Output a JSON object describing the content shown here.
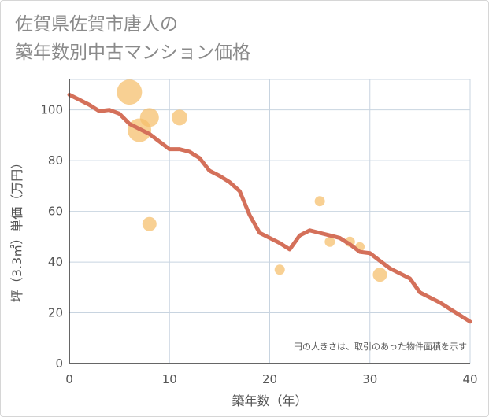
{
  "title_line1": "佐賀県佐賀市唐人の",
  "title_line2": "築年数別中古マンション価格",
  "chart_data": {
    "type": "scatter",
    "xlabel": "築年数（年）",
    "ylabel": "坪（3.3㎡）単価（万円）",
    "note": "円の大きさは、取引のあった物件面積を示す",
    "xlim": [
      0,
      40
    ],
    "ylim": [
      0,
      112
    ],
    "x_ticks": [
      0,
      10,
      20,
      30,
      40
    ],
    "y_ticks": [
      0,
      20,
      40,
      60,
      80,
      100
    ],
    "x_tick_labels": [
      "0",
      "10",
      "20",
      "30",
      "40"
    ],
    "y_tick_labels": [
      "0",
      "20",
      "40",
      "60",
      "80",
      "100"
    ],
    "grid": true,
    "colors": {
      "bubble": "#f5be69",
      "line": "#d4705a",
      "grid": "#c8d4e0",
      "axis": "#333333"
    },
    "scatter_points": [
      {
        "x": 6,
        "y": 107,
        "size": 3.2
      },
      {
        "x": 7,
        "y": 92,
        "size": 3.0
      },
      {
        "x": 8,
        "y": 97,
        "size": 2.4
      },
      {
        "x": 11,
        "y": 97,
        "size": 2.0
      },
      {
        "x": 8,
        "y": 55,
        "size": 1.8
      },
      {
        "x": 21,
        "y": 37,
        "size": 1.3
      },
      {
        "x": 25,
        "y": 64,
        "size": 1.3
      },
      {
        "x": 26,
        "y": 48,
        "size": 1.3
      },
      {
        "x": 28,
        "y": 48,
        "size": 1.3
      },
      {
        "x": 29,
        "y": 46,
        "size": 1.2
      },
      {
        "x": 31,
        "y": 35,
        "size": 1.8
      }
    ],
    "trend_line": {
      "x": [
        0,
        1,
        2,
        3,
        4,
        5,
        6,
        7,
        8,
        9,
        10,
        11,
        12,
        13,
        14,
        15,
        16,
        17,
        18,
        19,
        20,
        21,
        22,
        23,
        24,
        25,
        26,
        27,
        28,
        29,
        30,
        31,
        32,
        33,
        34,
        35,
        36,
        37,
        38,
        39,
        40
      ],
      "y": [
        106,
        104,
        102,
        99.5,
        100,
        98.5,
        94.5,
        92.5,
        90.5,
        87.5,
        84.5,
        84.5,
        83.5,
        81,
        76,
        74,
        71.5,
        68,
        58.5,
        51.5,
        49.5,
        47.5,
        45,
        50.5,
        52.5,
        51.5,
        50.5,
        49.5,
        47,
        44,
        43.5,
        40.5,
        37.5,
        35.5,
        33.5,
        28,
        26,
        24,
        21.5,
        19,
        16.5
      ]
    }
  }
}
